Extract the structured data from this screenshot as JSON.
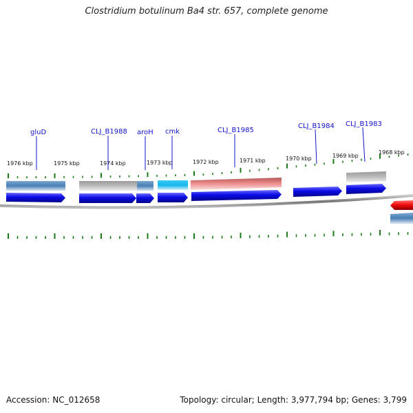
{
  "title": "Clostridium botulinum Ba4 str. 657, complete genome",
  "footer": {
    "accession": "Accession: NC_012658",
    "summary": "Topology: circular; Length: 3,977,794 bp; Genes: 3,799"
  },
  "colors": {
    "cds": "#0a0ae6",
    "gene_blue_gray": "#4a7fb5",
    "gene_gray": "#b8b8b8",
    "gene_cyan": "#12b5ec",
    "gene_pink": "#ee8e8e",
    "gene_red": "#ee0a0a",
    "label": "#1010cc",
    "ticks": "#1a7a1a",
    "backbone": "#888888"
  },
  "tick_labels": [
    "1976 kbp",
    "1975 kbp",
    "1974 kbp",
    "1973 kbp",
    "1972 kbp",
    "1971 kbp",
    "1970 kbp",
    "1969 kbp",
    "1968 kbp"
  ],
  "gene_labels": [
    "gluD",
    "CLJ_B1988",
    "aroH",
    "cmk",
    "CLJ_B1985",
    "CLJ_B1984",
    "CLJ_B1983"
  ]
}
